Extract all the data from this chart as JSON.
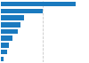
{
  "values": [
    9000,
    5000,
    2800,
    2400,
    2000,
    1400,
    1000,
    750,
    350
  ],
  "bar_color": "#1a7abf",
  "background_color": "#ffffff",
  "grid_color": "#c8c8c8",
  "bar_height": 0.72,
  "xlim": [
    0,
    10500
  ]
}
